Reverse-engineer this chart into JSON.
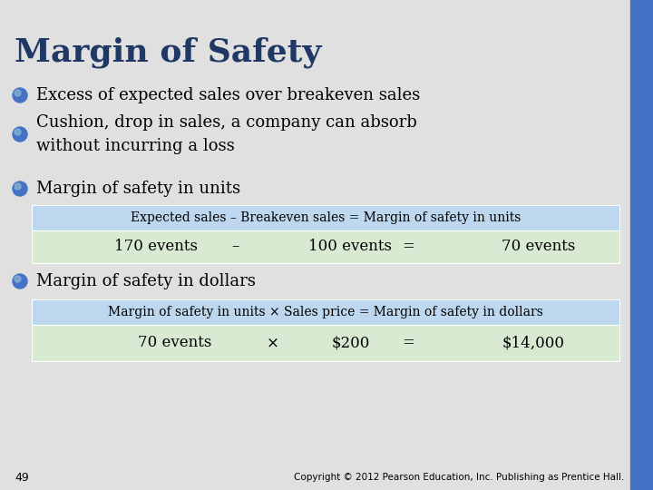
{
  "title": "Margin of Safety",
  "title_color": "#1F3864",
  "right_bar_color": "#4472C4",
  "bullet_color": "#4472C4",
  "bullet_points": [
    "Excess of expected sales over breakeven sales",
    "Cushion, drop in sales, a company can absorb\nwithout incurring a loss",
    "Margin of safety in units"
  ],
  "bullet4": "Margin of safety in dollars",
  "table1_header": "Expected sales – Breakeven sales = Margin of safety in units",
  "table1_row_parts": [
    [
      "170 events",
      0.14
    ],
    [
      "–",
      0.34
    ],
    [
      "100 events",
      0.47
    ],
    [
      "=",
      0.63
    ],
    [
      "70 events",
      0.8
    ]
  ],
  "table1_header_bg": "#BDD7EE",
  "table1_row_bg": "#D9EAD3",
  "table2_header": "Margin of safety in units × Sales price = Margin of safety in dollars",
  "table2_row_parts": [
    [
      "70 events",
      0.18
    ],
    [
      "×",
      0.4
    ],
    [
      "$200",
      0.51
    ],
    [
      "=",
      0.63
    ],
    [
      "$14,000",
      0.8
    ]
  ],
  "table2_header_bg": "#BDD7EE",
  "table2_row_bg": "#D9EAD3",
  "footer_page": "49",
  "footer_copy": "Copyright © 2012 Pearson Education, Inc. Publishing as Prentice Hall.",
  "slide_bg": "#E0E0E0"
}
